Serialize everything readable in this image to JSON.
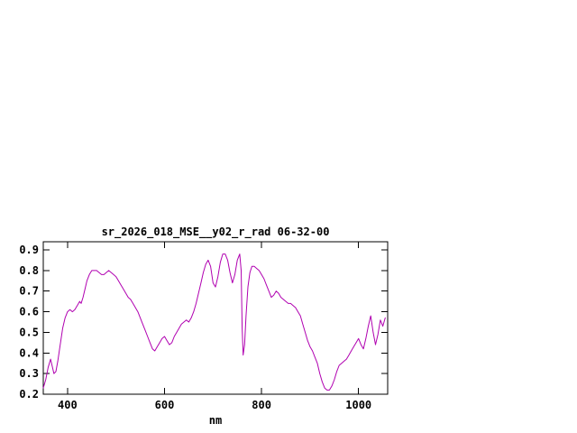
{
  "page": {
    "background_color": "#ffffff"
  },
  "chart_data": {
    "type": "line",
    "title": "sr_2026_018_MSE__y02_r_rad 06-32-00",
    "xlabel": "nm",
    "ylabel": "",
    "xlim": [
      350,
      1060
    ],
    "ylim": [
      0.2,
      0.9
    ],
    "x_ticks": [
      400,
      600,
      800,
      1000
    ],
    "y_ticks": [
      0.2,
      0.3,
      0.4,
      0.5,
      0.6,
      0.7,
      0.8,
      0.9
    ],
    "grid": false,
    "legend": "none",
    "border_color": "#000000",
    "series": [
      {
        "name": "sr_2026_018_MSE__y02_r_rad 06-32-00",
        "color": "#b000b0",
        "points": [
          [
            350,
            0.23
          ],
          [
            355,
            0.27
          ],
          [
            360,
            0.33
          ],
          [
            365,
            0.37
          ],
          [
            368,
            0.34
          ],
          [
            372,
            0.3
          ],
          [
            376,
            0.31
          ],
          [
            380,
            0.36
          ],
          [
            385,
            0.44
          ],
          [
            390,
            0.52
          ],
          [
            395,
            0.57
          ],
          [
            400,
            0.6
          ],
          [
            405,
            0.61
          ],
          [
            410,
            0.6
          ],
          [
            415,
            0.61
          ],
          [
            420,
            0.63
          ],
          [
            425,
            0.65
          ],
          [
            428,
            0.64
          ],
          [
            432,
            0.67
          ],
          [
            436,
            0.71
          ],
          [
            440,
            0.75
          ],
          [
            445,
            0.78
          ],
          [
            450,
            0.8
          ],
          [
            455,
            0.8
          ],
          [
            460,
            0.8
          ],
          [
            465,
            0.79
          ],
          [
            470,
            0.78
          ],
          [
            475,
            0.78
          ],
          [
            480,
            0.79
          ],
          [
            485,
            0.8
          ],
          [
            490,
            0.79
          ],
          [
            495,
            0.78
          ],
          [
            500,
            0.77
          ],
          [
            505,
            0.75
          ],
          [
            510,
            0.73
          ],
          [
            515,
            0.71
          ],
          [
            520,
            0.69
          ],
          [
            525,
            0.67
          ],
          [
            530,
            0.66
          ],
          [
            535,
            0.64
          ],
          [
            540,
            0.62
          ],
          [
            545,
            0.6
          ],
          [
            550,
            0.57
          ],
          [
            555,
            0.54
          ],
          [
            560,
            0.51
          ],
          [
            565,
            0.48
          ],
          [
            570,
            0.45
          ],
          [
            575,
            0.42
          ],
          [
            580,
            0.41
          ],
          [
            585,
            0.43
          ],
          [
            590,
            0.45
          ],
          [
            595,
            0.47
          ],
          [
            600,
            0.48
          ],
          [
            605,
            0.46
          ],
          [
            610,
            0.44
          ],
          [
            615,
            0.45
          ],
          [
            620,
            0.48
          ],
          [
            625,
            0.5
          ],
          [
            630,
            0.52
          ],
          [
            635,
            0.54
          ],
          [
            640,
            0.55
          ],
          [
            645,
            0.56
          ],
          [
            650,
            0.55
          ],
          [
            655,
            0.57
          ],
          [
            660,
            0.6
          ],
          [
            665,
            0.64
          ],
          [
            670,
            0.69
          ],
          [
            675,
            0.74
          ],
          [
            680,
            0.79
          ],
          [
            685,
            0.83
          ],
          [
            690,
            0.85
          ],
          [
            695,
            0.82
          ],
          [
            700,
            0.74
          ],
          [
            705,
            0.72
          ],
          [
            710,
            0.77
          ],
          [
            715,
            0.84
          ],
          [
            720,
            0.88
          ],
          [
            725,
            0.88
          ],
          [
            730,
            0.85
          ],
          [
            735,
            0.79
          ],
          [
            740,
            0.74
          ],
          [
            745,
            0.78
          ],
          [
            750,
            0.85
          ],
          [
            755,
            0.88
          ],
          [
            758,
            0.8
          ],
          [
            760,
            0.52
          ],
          [
            762,
            0.39
          ],
          [
            765,
            0.44
          ],
          [
            768,
            0.58
          ],
          [
            772,
            0.72
          ],
          [
            776,
            0.79
          ],
          [
            780,
            0.82
          ],
          [
            785,
            0.82
          ],
          [
            790,
            0.81
          ],
          [
            795,
            0.8
          ],
          [
            800,
            0.78
          ],
          [
            805,
            0.76
          ],
          [
            810,
            0.73
          ],
          [
            815,
            0.7
          ],
          [
            820,
            0.67
          ],
          [
            825,
            0.68
          ],
          [
            830,
            0.7
          ],
          [
            835,
            0.69
          ],
          [
            840,
            0.67
          ],
          [
            845,
            0.66
          ],
          [
            850,
            0.65
          ],
          [
            855,
            0.64
          ],
          [
            860,
            0.64
          ],
          [
            865,
            0.63
          ],
          [
            870,
            0.62
          ],
          [
            875,
            0.6
          ],
          [
            880,
            0.58
          ],
          [
            885,
            0.54
          ],
          [
            890,
            0.5
          ],
          [
            895,
            0.46
          ],
          [
            900,
            0.43
          ],
          [
            905,
            0.41
          ],
          [
            910,
            0.38
          ],
          [
            915,
            0.35
          ],
          [
            920,
            0.3
          ],
          [
            925,
            0.26
          ],
          [
            930,
            0.23
          ],
          [
            935,
            0.22
          ],
          [
            940,
            0.22
          ],
          [
            945,
            0.24
          ],
          [
            950,
            0.27
          ],
          [
            955,
            0.31
          ],
          [
            960,
            0.34
          ],
          [
            965,
            0.35
          ],
          [
            970,
            0.36
          ],
          [
            975,
            0.37
          ],
          [
            980,
            0.39
          ],
          [
            985,
            0.41
          ],
          [
            990,
            0.43
          ],
          [
            995,
            0.45
          ],
          [
            1000,
            0.47
          ],
          [
            1005,
            0.44
          ],
          [
            1010,
            0.42
          ],
          [
            1015,
            0.47
          ],
          [
            1020,
            0.53
          ],
          [
            1025,
            0.58
          ],
          [
            1030,
            0.5
          ],
          [
            1035,
            0.44
          ],
          [
            1040,
            0.49
          ],
          [
            1045,
            0.56
          ],
          [
            1050,
            0.53
          ],
          [
            1055,
            0.57
          ]
        ]
      }
    ]
  }
}
